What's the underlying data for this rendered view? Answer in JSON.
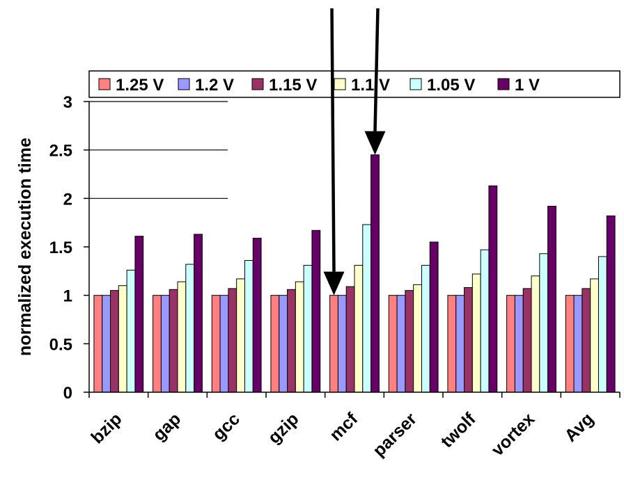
{
  "chart_data": {
    "type": "bar",
    "ylabel": "normalized execution time",
    "xlabel": "",
    "ylim": [
      0,
      3
    ],
    "yticks": [
      "0",
      "0.5",
      "1",
      "1.5",
      "2",
      "2.5",
      "3"
    ],
    "categories": [
      "bzip",
      "gap",
      "gcc",
      "gzip",
      "mcf",
      "parser",
      "twolf",
      "vortex",
      "Avg"
    ],
    "series": [
      {
        "name": "1.25 V",
        "color": "#FF8080",
        "values": [
          1.0,
          1.0,
          1.0,
          1.0,
          1.0,
          1.0,
          1.0,
          1.0,
          1.0
        ]
      },
      {
        "name": "1.2 V",
        "color": "#9999FF",
        "values": [
          1.0,
          1.0,
          1.0,
          1.0,
          1.0,
          1.0,
          1.0,
          1.0,
          1.0
        ]
      },
      {
        "name": "1.15 V",
        "color": "#993366",
        "values": [
          1.05,
          1.06,
          1.07,
          1.06,
          1.09,
          1.05,
          1.08,
          1.07,
          1.07
        ]
      },
      {
        "name": "1.1 V",
        "color": "#FFFFCC",
        "values": [
          1.1,
          1.14,
          1.17,
          1.14,
          1.31,
          1.11,
          1.22,
          1.2,
          1.17
        ]
      },
      {
        "name": "1.05 V",
        "color": "#CCFFFF",
        "values": [
          1.26,
          1.32,
          1.36,
          1.31,
          1.73,
          1.31,
          1.47,
          1.43,
          1.4
        ]
      },
      {
        "name": "1 V",
        "color": "#660066",
        "values": [
          1.61,
          1.63,
          1.59,
          1.67,
          2.45,
          1.55,
          2.13,
          1.92,
          1.82
        ]
      }
    ],
    "legend_position": "top",
    "grid": "horizontal (partial)",
    "annotations": [
      {
        "type": "arrow",
        "target_category": "mcf",
        "target_series": "1.25 V"
      },
      {
        "type": "arrow",
        "target_category": "mcf",
        "target_series": "1 V"
      }
    ]
  }
}
